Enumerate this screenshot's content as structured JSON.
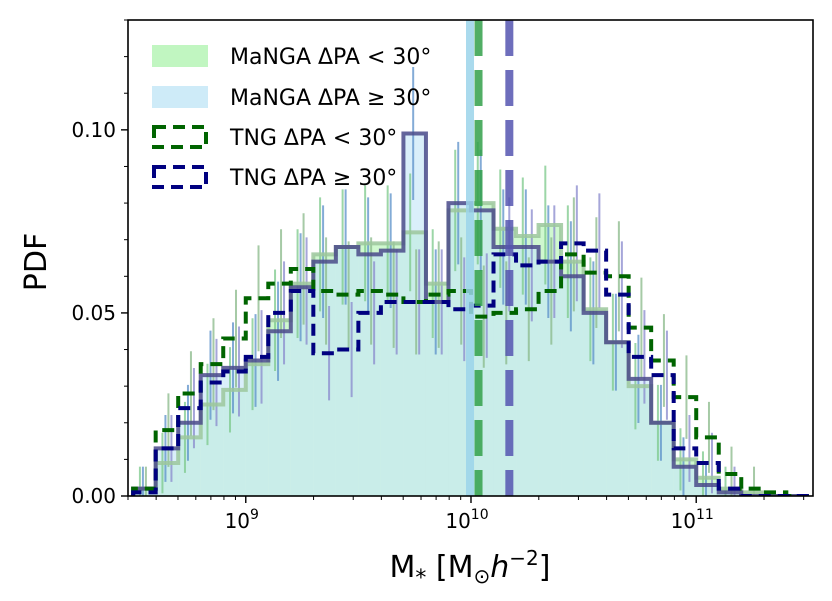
{
  "chart_data": {
    "type": "histogram",
    "xscale": "log",
    "xlim": [
      300000000,
      330000000000
    ],
    "ylim": [
      0,
      0.13
    ],
    "ylabel": "PDF",
    "xlabel_main": "M",
    "xlabel_sub": "*",
    "xlabel_unit_open": "[M",
    "xlabel_unit_sun": "⊙",
    "xlabel_h": "h",
    "xlabel_exp": "−2",
    "xlabel_close": "]",
    "yticks": [
      {
        "value": 0.0,
        "label": "0.00"
      },
      {
        "value": 0.05,
        "label": "0.05"
      },
      {
        "value": 0.1,
        "label": "0.10"
      }
    ],
    "xticks": [
      {
        "value": 1000000000,
        "base": "10",
        "exp": "9"
      },
      {
        "value": 10000000000,
        "base": "10",
        "exp": "10"
      },
      {
        "value": 100000000000,
        "base": "10",
        "exp": "11"
      }
    ],
    "bin_edges_log10": [
      8.5,
      8.6,
      8.7,
      8.8,
      8.9,
      9.0,
      9.1,
      9.2,
      9.3,
      9.4,
      9.5,
      9.6,
      9.7,
      9.8,
      9.9,
      10.0,
      10.1,
      10.2,
      10.3,
      10.4,
      10.5,
      10.6,
      10.7,
      10.8,
      10.9,
      11.0,
      11.1,
      11.2,
      11.3,
      11.4,
      11.5
    ],
    "series": [
      {
        "name": "MaNGA ΔPA < 30°",
        "label_lhs": "MaNGA ΔPA",
        "label_rhs": "< 30°",
        "style": "filled",
        "fill": "#b6f5b6",
        "edge": "#9cc79c",
        "values": [
          0.002,
          0.009,
          0.016,
          0.025,
          0.029,
          0.036,
          0.048,
          0.058,
          0.066,
          0.068,
          0.069,
          0.069,
          0.072,
          0.058,
          0.078,
          0.08,
          0.073,
          0.071,
          0.074,
          0.064,
          0.051,
          0.042,
          0.03,
          0.02,
          0.01,
          0.005,
          0.002,
          0.001,
          0.0,
          0.0
        ]
      },
      {
        "name": "MaNGA ΔPA ≥ 30°",
        "label_lhs": "MaNGA ΔPA",
        "label_rhs": "≥  30°",
        "style": "filled",
        "fill": "#c6e7f7",
        "edge": "#4a4a8a",
        "values": [
          0.002,
          0.013,
          0.02,
          0.033,
          0.035,
          0.037,
          0.045,
          0.057,
          0.064,
          0.068,
          0.066,
          0.067,
          0.099,
          0.053,
          0.08,
          0.078,
          0.068,
          0.068,
          0.064,
          0.06,
          0.05,
          0.042,
          0.032,
          0.02,
          0.008,
          0.003,
          0.001,
          0.0,
          0.0,
          0.0
        ]
      },
      {
        "name": "TNG ΔPA < 30°",
        "label_lhs": "TNG ΔPA",
        "label_rhs": "< 30°",
        "style": "dashed",
        "edge": "#006400",
        "values": [
          0.002,
          0.018,
          0.028,
          0.036,
          0.043,
          0.054,
          0.058,
          0.062,
          0.056,
          0.055,
          0.056,
          0.055,
          0.053,
          0.055,
          0.056,
          0.049,
          0.05,
          0.051,
          0.056,
          0.066,
          0.061,
          0.06,
          0.046,
          0.037,
          0.027,
          0.016,
          0.006,
          0.002,
          0.001,
          0.0
        ]
      },
      {
        "name": "TNG ΔPA ≥ 30°",
        "label_lhs": "TNG ΔPA",
        "label_rhs": "≥  30°",
        "style": "dashed",
        "edge": "#000080",
        "values": [
          0.001,
          0.013,
          0.024,
          0.031,
          0.034,
          0.038,
          0.05,
          0.056,
          0.039,
          0.04,
          0.05,
          0.053,
          0.053,
          0.053,
          0.051,
          0.052,
          0.066,
          0.063,
          0.064,
          0.069,
          0.067,
          0.055,
          0.038,
          0.033,
          0.013,
          0.009,
          0.002,
          0.0,
          0.0,
          0.0
        ]
      }
    ],
    "vlines": [
      {
        "x": 9900000000,
        "color": "#9bd4ea",
        "style": "solid"
      },
      {
        "x": 10800000000,
        "color": "#33a04a",
        "style": "dashed"
      },
      {
        "x": 14800000000,
        "color": "#5555b0",
        "style": "dashed"
      }
    ]
  }
}
